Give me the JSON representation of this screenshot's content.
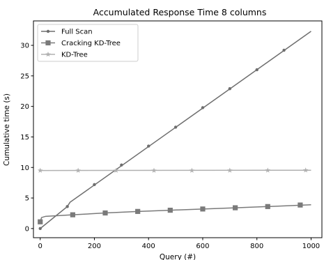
{
  "chart_data": {
    "type": "line",
    "title": "Accumulated Response Time 8 columns",
    "xlabel": "Query (#)",
    "ylabel": "Cumulative time (s)",
    "xlim": [
      -25,
      1040
    ],
    "ylim": [
      -1.5,
      34
    ],
    "xticks": [
      0,
      200,
      400,
      600,
      800,
      1000
    ],
    "yticks": [
      0,
      5,
      10,
      15,
      20,
      25,
      30
    ],
    "grid": false,
    "legend_position": "top-left",
    "series": [
      {
        "name": "Full Scan",
        "color": "#6e6e6e",
        "marker": "circle",
        "line": [
          [
            0,
            0
          ],
          [
            100,
            3.6
          ],
          [
            110,
            4.3
          ],
          [
            1000,
            32.3
          ]
        ],
        "markers": [
          [
            0,
            0
          ],
          [
            100,
            3.6
          ],
          [
            200,
            7.2
          ],
          [
            300,
            10.4
          ],
          [
            400,
            13.5
          ],
          [
            500,
            16.6
          ],
          [
            600,
            19.8
          ],
          [
            700,
            22.9
          ],
          [
            800,
            26.0
          ],
          [
            900,
            29.2
          ]
        ]
      },
      {
        "name": "Cracking KD-Tree",
        "color": "#7a7a7a",
        "marker": "square",
        "line": [
          [
            0,
            1.1
          ],
          [
            5,
            1.8
          ],
          [
            20,
            2.0
          ],
          [
            60,
            2.1
          ],
          [
            120,
            2.25
          ],
          [
            240,
            2.55
          ],
          [
            360,
            2.8
          ],
          [
            480,
            3.0
          ],
          [
            600,
            3.2
          ],
          [
            720,
            3.4
          ],
          [
            840,
            3.6
          ],
          [
            1000,
            3.9
          ]
        ],
        "markers": [
          [
            0,
            1.1
          ],
          [
            120,
            2.25
          ],
          [
            240,
            2.55
          ],
          [
            360,
            2.8
          ],
          [
            480,
            3.0
          ],
          [
            600,
            3.2
          ],
          [
            720,
            3.4
          ],
          [
            840,
            3.6
          ],
          [
            960,
            3.85
          ]
        ]
      },
      {
        "name": "KD-Tree",
        "color": "#b0b0b0",
        "marker": "star",
        "line": [
          [
            0,
            9.5
          ],
          [
            1000,
            9.55
          ]
        ],
        "markers": [
          [
            0,
            9.5
          ],
          [
            140,
            9.5
          ],
          [
            280,
            9.5
          ],
          [
            420,
            9.5
          ],
          [
            560,
            9.5
          ],
          [
            700,
            9.52
          ],
          [
            840,
            9.53
          ],
          [
            980,
            9.55
          ]
        ]
      }
    ]
  }
}
